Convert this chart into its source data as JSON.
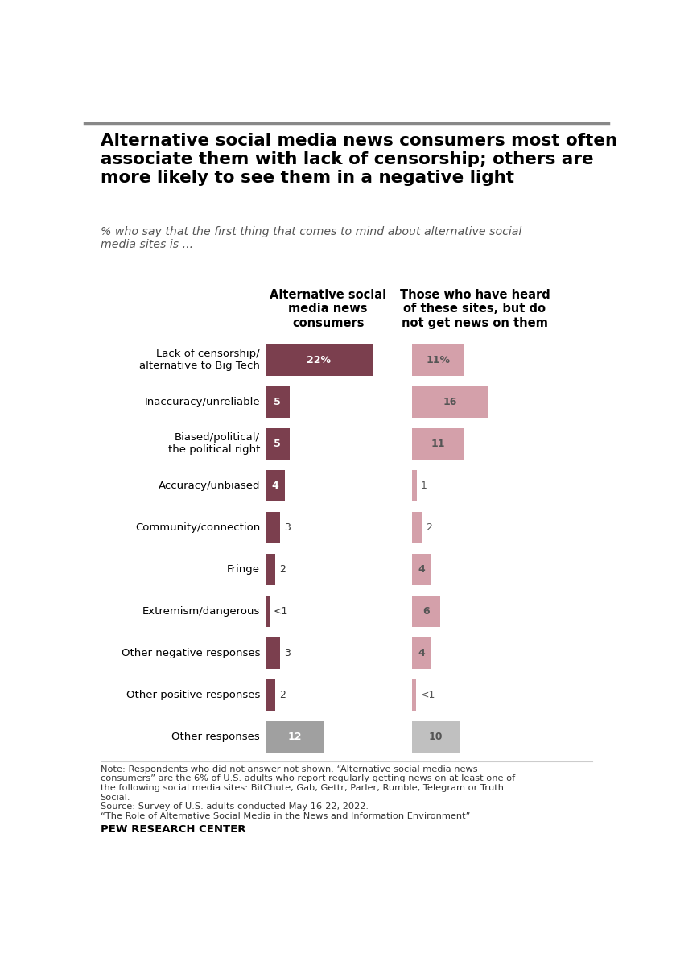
{
  "title": "Alternative social media news consumers most often\nassociate them with lack of censorship; others are\nmore likely to see them in a negative light",
  "subtitle": "% who say that the first thing that comes to mind about alternative social\nmedia sites is ...",
  "col1_header": "Alternative social\nmedia news\nconsumers",
  "col2_header": "Those who have heard\nof these sites, but do\nnot get news on them",
  "categories": [
    "Lack of censorship/\nalternative to Big Tech",
    "Inaccuracy/unreliable",
    "Biased/political/\nthe political right",
    "Accuracy/unbiased",
    "Community/connection",
    "Fringe",
    "Extremism/dangerous",
    "Other negative responses",
    "Other positive responses",
    "Other responses"
  ],
  "col1_values": [
    22,
    5,
    5,
    4,
    3,
    2,
    0.5,
    3,
    2,
    12
  ],
  "col2_values": [
    11,
    16,
    11,
    1,
    2,
    4,
    6,
    4,
    0.5,
    10
  ],
  "col1_labels": [
    "22%",
    "5",
    "5",
    "4",
    "3",
    "2",
    "<1",
    "3",
    "2",
    "12"
  ],
  "col2_labels": [
    "11%",
    "16",
    "11",
    "1",
    "2",
    "4",
    "6",
    "4",
    "<1",
    "10"
  ],
  "col1_color_main": "#7b3f4e",
  "col1_color_other": "#a0a0a0",
  "col2_color_main": "#d4a0aa",
  "col2_color_other": "#c0c0c0",
  "note": "Note: Respondents who did not answer not shown. “Alternative social media news\nconsumers” are the 6% of U.S. adults who report regularly getting news on at least one of\nthe following social media sites: BitChute, Gab, Gettr, Parler, Rumble, Telegram or Truth\nSocial.\nSource: Survey of U.S. adults conducted May 16-22, 2022.\n“The Role of Alternative Social Media in the News and Information Environment”",
  "footer": "PEW RESEARCH CENTER",
  "background_color": "#ffffff"
}
